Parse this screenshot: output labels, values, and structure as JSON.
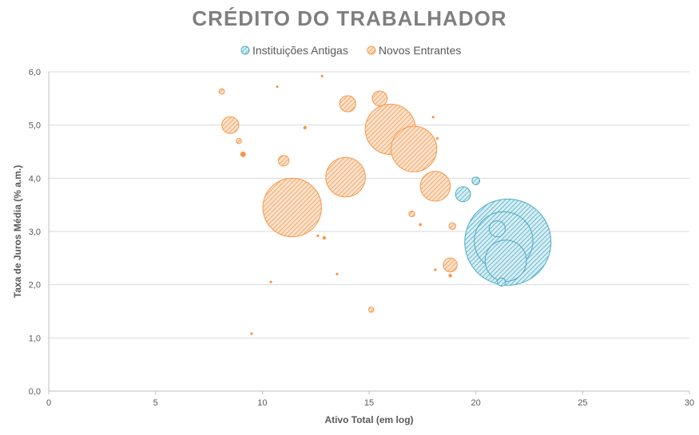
{
  "chart_data": {
    "type": "scatter",
    "title": "CRÉDITO DO TRABALHADOR",
    "xlabel": "Ativo Total (em log)",
    "ylabel": "Taxa de Juros Média (% a.m.)",
    "xlim": [
      0,
      30
    ],
    "ylim": [
      0,
      6
    ],
    "x_ticks": [
      "0",
      "5",
      "10",
      "15",
      "20",
      "25",
      "30"
    ],
    "y_ticks": [
      "0,0",
      "1,0",
      "2,0",
      "3,0",
      "4,0",
      "5,0",
      "6,0"
    ],
    "grid": "horizontal",
    "legend_position": "top-center",
    "colors": {
      "Instituições Antigas": "#4bacc6",
      "Novos Entrantes": "#f79646"
    },
    "series": [
      {
        "name": "Instituições Antigas",
        "points": [
          {
            "x": 21.5,
            "y": 2.8,
            "size": 100
          },
          {
            "x": 21.3,
            "y": 2.82,
            "size": 46
          },
          {
            "x": 21.4,
            "y": 2.45,
            "size": 23
          },
          {
            "x": 21.0,
            "y": 3.05,
            "size": 3.5
          },
          {
            "x": 19.4,
            "y": 3.7,
            "size": 3
          },
          {
            "x": 20.0,
            "y": 3.95,
            "size": 0.8
          },
          {
            "x": 21.2,
            "y": 2.05,
            "size": 0.9
          }
        ]
      },
      {
        "name": "Novos Entrantes",
        "points": [
          {
            "x": 11.4,
            "y": 3.45,
            "size": 46
          },
          {
            "x": 16.0,
            "y": 4.92,
            "size": 34
          },
          {
            "x": 17.1,
            "y": 4.55,
            "size": 28
          },
          {
            "x": 13.9,
            "y": 4.02,
            "size": 21
          },
          {
            "x": 18.1,
            "y": 3.85,
            "size": 12
          },
          {
            "x": 8.5,
            "y": 5.0,
            "size": 3.8
          },
          {
            "x": 14.0,
            "y": 5.4,
            "size": 3.5
          },
          {
            "x": 15.5,
            "y": 5.5,
            "size": 3.0
          },
          {
            "x": 18.8,
            "y": 2.37,
            "size": 2.6
          },
          {
            "x": 11.0,
            "y": 4.33,
            "size": 1.5
          },
          {
            "x": 18.9,
            "y": 3.1,
            "size": 0.6
          },
          {
            "x": 17.0,
            "y": 3.33,
            "size": 0.45
          },
          {
            "x": 15.1,
            "y": 1.53,
            "size": 0.35
          },
          {
            "x": 8.1,
            "y": 5.63,
            "size": 0.4
          },
          {
            "x": 8.9,
            "y": 4.7,
            "size": 0.35
          },
          {
            "x": 9.1,
            "y": 4.45,
            "size": 0.3
          },
          {
            "x": 12.9,
            "y": 2.88,
            "size": 0.1
          },
          {
            "x": 12.0,
            "y": 4.95,
            "size": 0.1
          },
          {
            "x": 18.8,
            "y": 2.17,
            "size": 0.1
          },
          {
            "x": 17.4,
            "y": 3.13,
            "size": 0.06
          },
          {
            "x": 10.7,
            "y": 5.72,
            "size": 0.02
          },
          {
            "x": 12.8,
            "y": 5.92,
            "size": 0.02
          },
          {
            "x": 18.0,
            "y": 5.15,
            "size": 0.02
          },
          {
            "x": 18.2,
            "y": 4.75,
            "size": 0.02
          },
          {
            "x": 13.5,
            "y": 2.2,
            "size": 0.02
          },
          {
            "x": 10.4,
            "y": 2.05,
            "size": 0.02
          },
          {
            "x": 9.5,
            "y": 1.08,
            "size": 0.02
          },
          {
            "x": 12.6,
            "y": 2.92,
            "size": 0.02
          },
          {
            "x": 18.1,
            "y": 2.28,
            "size": 0.02
          }
        ]
      }
    ]
  }
}
